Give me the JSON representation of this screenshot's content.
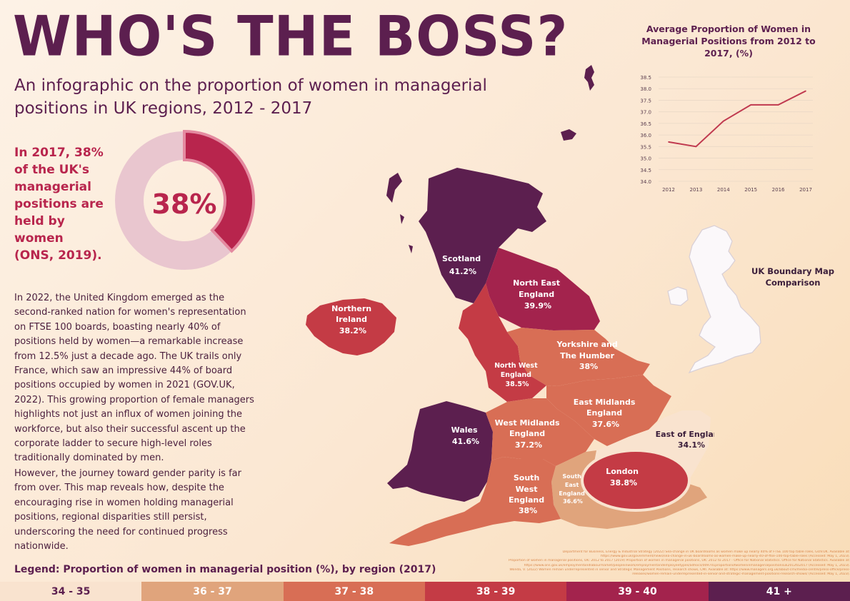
{
  "header": {
    "title": "WHO'S THE BOSS?",
    "subtitle": "An infographic on the proportion of women in managerial positions in UK regions, 2012 - 2017"
  },
  "stat": {
    "text": "In 2017, 38% of the UK's managerial positions are held by women (ONS, 2019).",
    "value_label": "38%",
    "value": 38
  },
  "body": {
    "paragraph1": "In 2022, the United Kingdom emerged as the second-ranked nation for women's representation on FTSE 100 boards, boasting nearly 40% of positions held by women—a remarkable increase from 12.5% just a decade ago. The UK trails only France, which saw an impressive 44% of board positions occupied by women in 2021 (GOV.UK, 2022). This growing proportion of female managers highlights not just an influx of women joining the workforce, but also their successful ascent up the corporate ladder to secure high-level roles traditionally dominated by men.",
    "paragraph2": "However, the journey toward gender parity is far from over. This map reveals how, despite the encouraging rise in women holding managerial positions, regional disparities still persist, underscoring the need for continued progress nationwide."
  },
  "legend": {
    "title": "Legend: Proportion of women in managerial position (%), by region (2017)",
    "bins": [
      {
        "label": "34 - 35",
        "color": "#f9e3cf",
        "text_color": "#5c1f4f"
      },
      {
        "label": "36 - 37",
        "color": "#e0a47c",
        "text_color": "#ffffff"
      },
      {
        "label": "37 - 38",
        "color": "#d86e55",
        "text_color": "#ffffff"
      },
      {
        "label": "38 - 39",
        "color": "#c43b45",
        "text_color": "#ffffff"
      },
      {
        "label": "39 - 40",
        "color": "#a3234d",
        "text_color": "#ffffff"
      },
      {
        "label": "41 +",
        "color": "#5c1f4f",
        "text_color": "#ffffff"
      }
    ]
  },
  "map_labels": {
    "scotland": [
      "Scotland",
      "41.2%"
    ],
    "north_east": [
      "North East",
      "England",
      "39.9%"
    ],
    "northern_ireland": [
      "Northern",
      "Ireland",
      "38.2%"
    ],
    "yorkshire": [
      "Yorkshire and",
      "The Humber",
      "38%"
    ],
    "north_west": [
      "North West",
      "England",
      "38.5%"
    ],
    "east_midlands": [
      "East Midlands",
      "England",
      "37.6%"
    ],
    "wales": [
      "Wales",
      "41.6%"
    ],
    "west_midlands": [
      "West Midlands",
      "England",
      "37.2%"
    ],
    "east_of_england": [
      "East of England",
      "34.1%"
    ],
    "london": [
      "London",
      "38.8%"
    ],
    "south_east": [
      "South",
      "East",
      "England",
      "36.6%"
    ],
    "south_west": [
      "South",
      "West",
      "England",
      "38%"
    ]
  },
  "colors": {
    "title": "#5c1f4f",
    "accent": "#b8254d",
    "donut_track": "#e9c6cf",
    "donut_fill": "#b8254d",
    "line": "#c0394f"
  },
  "chart_data": [
    {
      "type": "pie",
      "values": [
        38,
        62
      ],
      "center_label": "38%"
    },
    {
      "type": "line",
      "title": "Average Proportion of Women in Managerial Positions from 2012 to 2017, (%)",
      "x": [
        "2012",
        "2013",
        "2014",
        "2015",
        "2016",
        "2017"
      ],
      "y": [
        35.7,
        35.5,
        36.6,
        37.3,
        37.3,
        37.9
      ],
      "ylim": [
        34.0,
        38.5
      ],
      "yticks": [
        "34.0",
        "34.5",
        "35.0",
        "35.5",
        "36.0",
        "36.5",
        "37.0",
        "37.5",
        "38.0",
        "38.5"
      ],
      "grid": true
    },
    {
      "type": "table",
      "title": "Proportion of women in managerial position (%), by region (2017)",
      "regions": [
        {
          "name": "Scotland",
          "value": 41.2
        },
        {
          "name": "North East England",
          "value": 39.9
        },
        {
          "name": "Northern Ireland",
          "value": 38.2
        },
        {
          "name": "Yorkshire and The Humber",
          "value": 38
        },
        {
          "name": "North West England",
          "value": 38.5
        },
        {
          "name": "East Midlands England",
          "value": 37.6
        },
        {
          "name": "Wales",
          "value": 41.6
        },
        {
          "name": "West Midlands England",
          "value": 37.2
        },
        {
          "name": "East of England",
          "value": 34.1
        },
        {
          "name": "London",
          "value": 38.8
        },
        {
          "name": "South East England",
          "value": 36.6
        },
        {
          "name": "South West England",
          "value": 38
        }
      ]
    }
  ],
  "uk_map": {
    "label": "UK Boundary Map Comparison"
  },
  "references": [
    "Department for Business, Energy & Industrial Strategy (2022) Sea-change in UK boardrooms as women make up nearly 40% of FTSE 100 top table roles, GOV.UK. Available at:",
    "https://www.gov.uk/government/news/sea-change-in-uk-boardrooms-as-women-make-up-nearly-40-of-ftse-100-top-table-roles (Accessed: May 1, 2023).",
    "Proportion of women in managerial positions, UK: 2012 to 2017 (2019) Proportion of women in managerial positions, UK: 2012 to 2017 - Office for National Statistics. Office for National Statistics. Available at:",
    "https://www.ons.gov.uk/employmentandlabourmarket/peopleinwork/employmentandemployeetypes/adhocs/009741proportionofwomeninmanagerialpositionsuk2012to2017 (Accessed: May 1, 2023).",
    "Wonda, V. (2022) Women remain underrepresented in senior and Strategic Management Positions, research shows, CMI. Available at: https://www.managers.org.uk/about-cmi/media-centre/press-office/press-",
    "releases/women-remain-underrepresented-in-senior-and-strategic-management-positions-research-shows/ (Accessed: May 1, 2023)."
  ]
}
